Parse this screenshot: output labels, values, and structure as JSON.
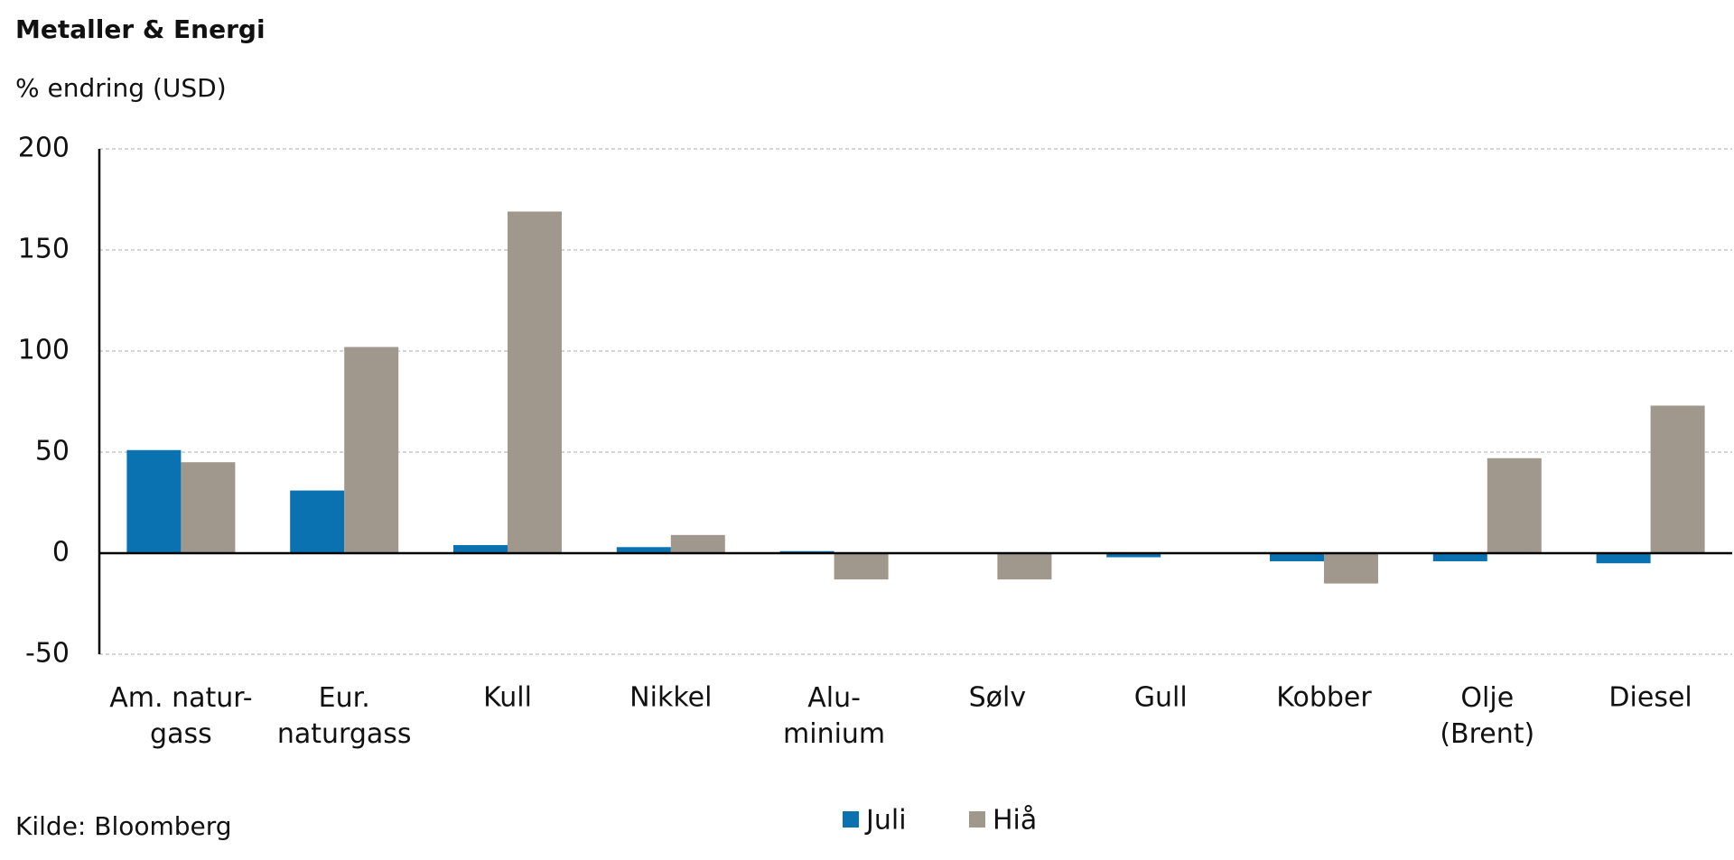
{
  "chart_data": {
    "type": "bar",
    "title": "Metaller & Energi",
    "subtitle": "% endring (USD)",
    "source": "Kilde: Bloomberg",
    "categories": [
      "Am. natur-\ngass",
      "Eur.\nnaturgass",
      "Kull",
      "Nikkel",
      "Alu-\nminium",
      "Sølv",
      "Gull",
      "Kobber",
      "Olje\n(Brent)",
      "Diesel"
    ],
    "series": [
      {
        "name": "Juli",
        "color": "#0a72b0",
        "values": [
          51,
          31,
          4,
          3,
          1,
          0,
          -2,
          -4,
          -4,
          -5
        ]
      },
      {
        "name": "Hiå",
        "color": "#a0978d",
        "values": [
          45,
          102,
          169,
          9,
          -13,
          -13,
          0,
          -15,
          47,
          73
        ]
      }
    ],
    "ylim": [
      -50,
      200
    ],
    "yticks": [
      -50,
      0,
      50,
      100,
      150,
      200
    ],
    "grid": true
  }
}
